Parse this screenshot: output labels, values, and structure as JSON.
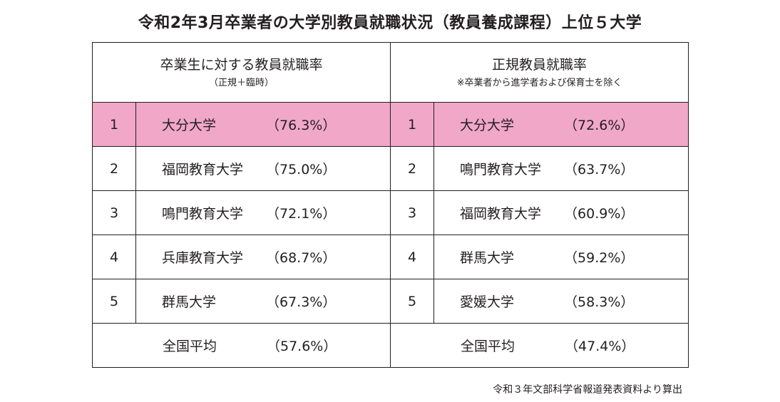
{
  "title": "令和2年3月卒業者の大学別教員就職状況（教員養成課程）上位５大学",
  "left_header": {
    "main": "卒業生に対する教員就職率",
    "sub": "（正規＋臨時）"
  },
  "right_header": {
    "main": "正規教員就職率",
    "sub": "※卒業者から進学者および保育士を除く"
  },
  "rows": [
    {
      "left": {
        "rank": "1",
        "name": "大分大学",
        "rate": "（76.3%）"
      },
      "right": {
        "rank": "1",
        "name": "大分大学",
        "rate": "（72.6%）"
      }
    },
    {
      "left": {
        "rank": "2",
        "name": "福岡教育大学",
        "rate": "（75.0%）"
      },
      "right": {
        "rank": "2",
        "name": "鳴門教育大学",
        "rate": "（63.7%）"
      }
    },
    {
      "left": {
        "rank": "3",
        "name": "鳴門教育大学",
        "rate": "（72.1%）"
      },
      "right": {
        "rank": "3",
        "name": "福岡教育大学",
        "rate": "（60.9%）"
      }
    },
    {
      "left": {
        "rank": "4",
        "name": "兵庫教育大学",
        "rate": "（68.7%）"
      },
      "right": {
        "rank": "4",
        "name": "群馬大学",
        "rate": "（59.2%）"
      }
    },
    {
      "left": {
        "rank": "5",
        "name": "群馬大学",
        "rate": "（67.3%）"
      },
      "right": {
        "rank": "5",
        "name": "愛媛大学",
        "rate": "（58.3%）"
      }
    }
  ],
  "average": {
    "left": {
      "label": "全国平均",
      "rate": "（57.6%）"
    },
    "right": {
      "label": "全国平均",
      "rate": "（47.4%）"
    }
  },
  "source": "令和３年文部科学省報道発表資料より算出",
  "highlight_color": "#f1a7c8"
}
